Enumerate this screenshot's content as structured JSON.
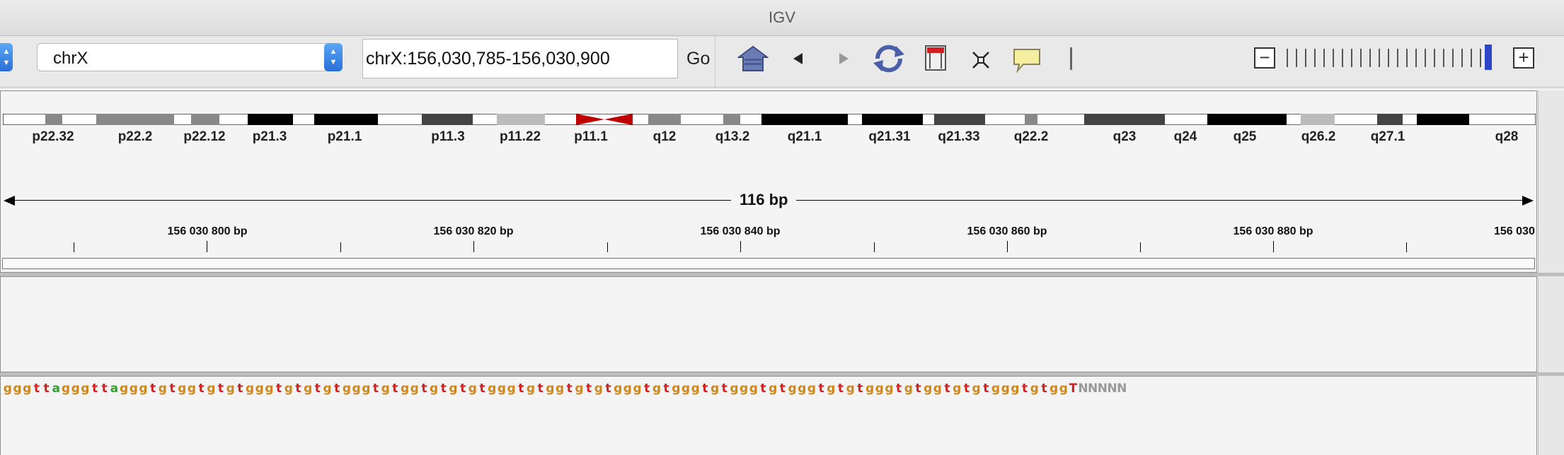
{
  "window": {
    "title": "IGV"
  },
  "toolbar": {
    "chromosome": "chrX",
    "locus": "chrX:156,030,785-156,030,900",
    "go_label": "Go",
    "icons": [
      "home-icon",
      "back-icon",
      "forward-icon",
      "refresh-icon",
      "region-of-interest-icon",
      "fit-to-window-icon",
      "popup-info-icon",
      "divider-icon"
    ],
    "zoom_out": "−",
    "zoom_in": "+",
    "zoom_level": 0.92
  },
  "ideogram": {
    "bands": [
      "p22.32",
      "p22.2",
      "p22.12",
      "p21.3",
      "p21.1",
      "p11.3",
      "p11.22",
      "p11.1",
      "q12",
      "q13.2",
      "q21.1",
      "q21.31",
      "q21.33",
      "q22.2",
      "q23",
      "q24",
      "q25",
      "q26.2",
      "q27.1",
      "q28"
    ],
    "centromere_color": "#c00000"
  },
  "ruler": {
    "span": "116 bp",
    "tick_labels": [
      "156 030 800 bp",
      "156 030 820 bp",
      "156 030 840 bp",
      "156 030 860 bp",
      "156 030 880 bp",
      "156 030"
    ]
  },
  "sequence": {
    "bases": "gggttagggttagggtgtggtgtgtgggtgtgtgtgggtgtggtgtgtgtgggtgtggtgtgtgggtgtgggtgtgggtgtgggtgtgtgggtgtggtgtgtgggtgtggTNNNNN",
    "colors": {
      "a": "#2aa02a",
      "g": "#d1861b",
      "t": "#d12020",
      "N": "#999999"
    }
  }
}
